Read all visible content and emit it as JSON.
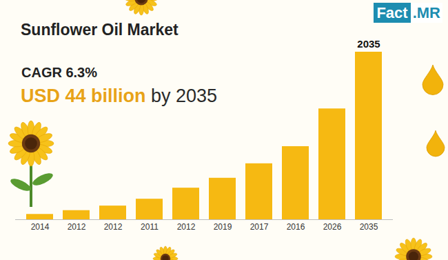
{
  "chart_data": {
    "type": "bar",
    "title": "Sunflower Oil Market",
    "subtitle": "CAGR 6.3%",
    "headline": [
      "USD 44 billion",
      "by 2035"
    ],
    "logo": "Fact.MR",
    "categories": [
      "2014",
      "2012",
      "2012",
      "2011",
      "2012",
      "2019",
      "2017",
      "2016",
      "2026",
      "2035"
    ],
    "values": [
      1.4,
      2.4,
      3.6,
      5.4,
      8.3,
      10.9,
      14.7,
      19.2,
      29.1,
      44
    ],
    "color": "#f6b912",
    "ylim": [
      0,
      44
    ],
    "tick_labels": "x",
    "grid": false,
    "annotations": [
      "2035"
    ]
  }
}
